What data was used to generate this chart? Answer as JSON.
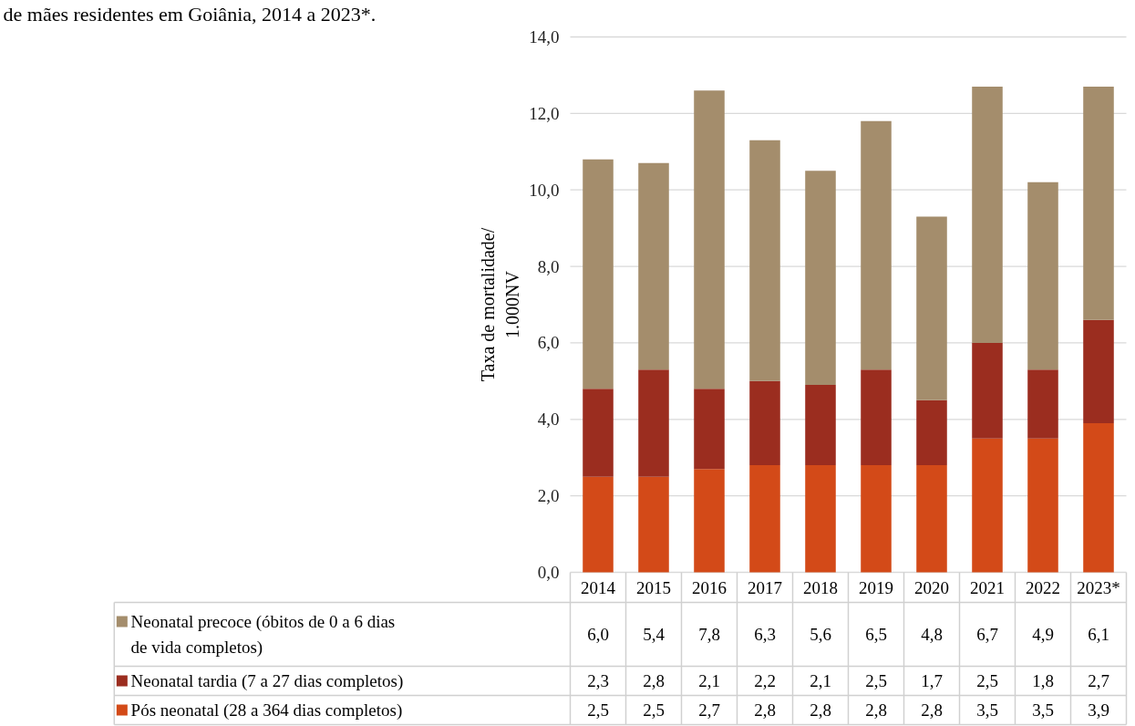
{
  "chart_data": {
    "type": "bar",
    "stacked": true,
    "title": "de mães residentes em Goiânia, 2014 a 2023*.",
    "ylabel": "Taxa de mortalidade/\n1.000NV",
    "categories": [
      "2014",
      "2015",
      "2016",
      "2017",
      "2018",
      "2019",
      "2020",
      "2021",
      "2022",
      "2023*"
    ],
    "series": [
      {
        "name": "Pós neonatal (28 a 364 dias completos)",
        "color": "#d34a18",
        "values": [
          2.5,
          2.5,
          2.7,
          2.8,
          2.8,
          2.8,
          2.8,
          3.5,
          3.5,
          3.9
        ],
        "value_labels": [
          "2,5",
          "2,5",
          "2,7",
          "2,8",
          "2,8",
          "2,8",
          "2,8",
          "3,5",
          "3,5",
          "3,9"
        ]
      },
      {
        "name": "Neonatal tardia (7 a 27 dias completos)",
        "color": "#9b2d1f",
        "values": [
          2.3,
          2.8,
          2.1,
          2.2,
          2.1,
          2.5,
          1.7,
          2.5,
          1.8,
          2.7
        ],
        "value_labels": [
          "2,3",
          "2,8",
          "2,1",
          "2,2",
          "2,1",
          "2,5",
          "1,7",
          "2,5",
          "1,8",
          "2,7"
        ]
      },
      {
        "name": "Neonatal precoce (óbitos de 0 a 6 dias de vida completos)",
        "color": "#a48d6c",
        "values": [
          6.0,
          5.4,
          7.8,
          6.3,
          5.6,
          6.5,
          4.8,
          6.7,
          4.9,
          6.1
        ],
        "value_labels": [
          "6,0",
          "5,4",
          "7,8",
          "6,3",
          "5,6",
          "6,5",
          "4,8",
          "6,7",
          "4,9",
          "6,1"
        ]
      }
    ],
    "ylim": [
      0,
      14
    ],
    "yticks": [
      {
        "value": 0,
        "label": "0,0"
      },
      {
        "value": 2,
        "label": "2,0"
      },
      {
        "value": 4,
        "label": "4,0"
      },
      {
        "value": 6,
        "label": "6,0"
      },
      {
        "value": 8,
        "label": "8,0"
      },
      {
        "value": 10,
        "label": "10,0"
      },
      {
        "value": 12,
        "label": "12,0"
      },
      {
        "value": 14,
        "label": "14,0"
      }
    ],
    "grid": "y",
    "legend": "bottom"
  }
}
